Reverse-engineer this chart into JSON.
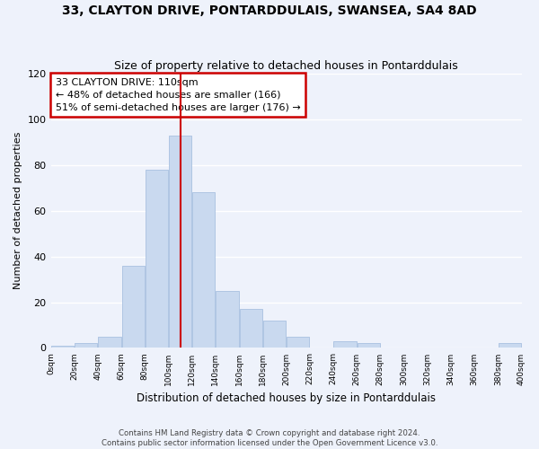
{
  "title": "33, CLAYTON DRIVE, PONTARDDULAIS, SWANSEA, SA4 8AD",
  "subtitle": "Size of property relative to detached houses in Pontarddulais",
  "xlabel": "Distribution of detached houses by size in Pontarddulais",
  "ylabel": "Number of detached properties",
  "bar_color": "#c9d9ef",
  "bar_edge_color": "#a8c0e0",
  "bins": [
    0,
    20,
    40,
    60,
    80,
    100,
    120,
    140,
    160,
    180,
    200,
    220,
    240,
    260,
    280,
    300,
    320,
    340,
    360,
    380,
    400
  ],
  "counts": [
    1,
    2,
    5,
    36,
    78,
    93,
    68,
    25,
    17,
    12,
    5,
    0,
    3,
    2,
    0,
    0,
    0,
    0,
    0,
    2
  ],
  "property_size": 110,
  "annotation_text": "33 CLAYTON DRIVE: 110sqm\n← 48% of detached houses are smaller (166)\n51% of semi-detached houses are larger (176) →",
  "annotation_box_color": "#ffffff",
  "annotation_box_edge_color": "#cc0000",
  "vline_color": "#cc0000",
  "ylim": [
    0,
    120
  ],
  "tick_labels": [
    "0sqm",
    "20sqm",
    "40sqm",
    "60sqm",
    "80sqm",
    "100sqm",
    "120sqm",
    "140sqm",
    "160sqm",
    "180sqm",
    "200sqm",
    "220sqm",
    "240sqm",
    "260sqm",
    "280sqm",
    "300sqm",
    "320sqm",
    "340sqm",
    "360sqm",
    "380sqm",
    "400sqm"
  ],
  "footer_text": "Contains HM Land Registry data © Crown copyright and database right 2024.\nContains public sector information licensed under the Open Government Licence v3.0.",
  "background_color": "#eef2fb",
  "grid_color": "#ffffff"
}
